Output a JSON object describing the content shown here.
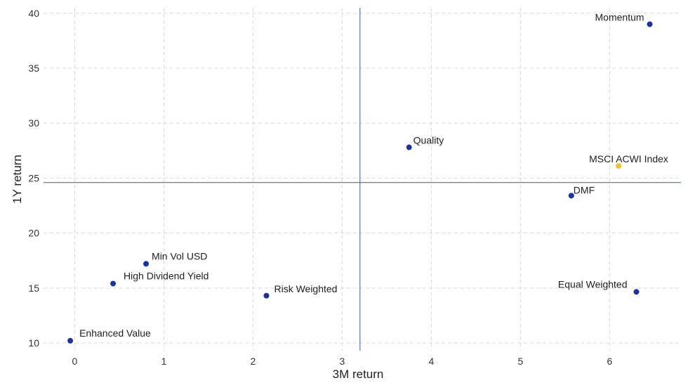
{
  "chart_data": {
    "type": "scatter",
    "title": "",
    "xlabel": "3M return",
    "ylabel": "1Y return",
    "xlim": [
      -0.35,
      6.8
    ],
    "ylim": [
      9.3,
      40.5
    ],
    "xticks": [
      0,
      1,
      2,
      3,
      4,
      5,
      6
    ],
    "yticks": [
      10,
      15,
      20,
      25,
      30,
      35,
      40
    ],
    "grid": true,
    "reference_lines": {
      "x": 3.2,
      "y": 24.6
    },
    "colors": {
      "default": "#1a33a0",
      "highlight": "#f2c230"
    },
    "points": [
      {
        "label": "Momentum",
        "x": 6.45,
        "y": 39.0,
        "highlight": false
      },
      {
        "label": "Quality",
        "x": 3.75,
        "y": 27.8,
        "highlight": false
      },
      {
        "label": "MSCI ACWI Index",
        "x": 6.1,
        "y": 26.1,
        "highlight": true
      },
      {
        "label": "DMF",
        "x": 5.57,
        "y": 23.4,
        "highlight": false
      },
      {
        "label": "Min Vol USD",
        "x": 0.8,
        "y": 17.2,
        "highlight": false
      },
      {
        "label": "High Dividend Yield",
        "x": 0.43,
        "y": 15.4,
        "highlight": false
      },
      {
        "label": "Risk Weighted",
        "x": 2.15,
        "y": 14.3,
        "highlight": false
      },
      {
        "label": "Equal Weighted",
        "x": 6.3,
        "y": 14.65,
        "highlight": false
      },
      {
        "label": "Enhanced Value",
        "x": -0.05,
        "y": 10.2,
        "highlight": false
      }
    ]
  }
}
